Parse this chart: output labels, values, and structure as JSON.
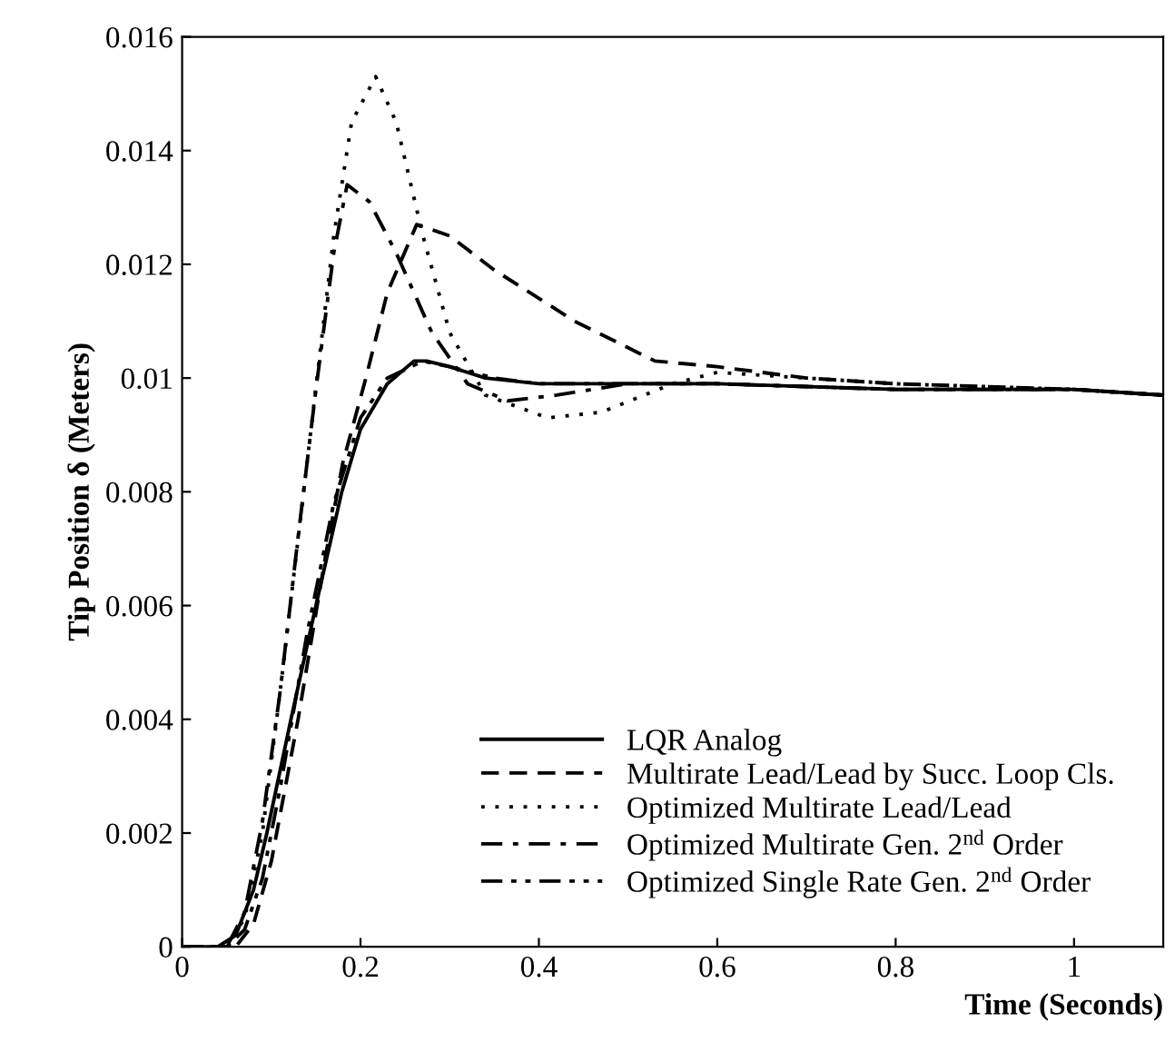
{
  "chart_data": {
    "type": "line",
    "xlabel": "Time (Seconds)",
    "ylabel": "Tip Position δ (Meters)",
    "xlim": [
      0,
      1.1
    ],
    "xticks": [
      0,
      0.2,
      0.4,
      0.6,
      0.8,
      1
    ],
    "ylim": [
      0,
      0.016
    ],
    "yticks": [
      0,
      0.002,
      0.004,
      0.006,
      0.008,
      0.01,
      0.012,
      0.014,
      0.016
    ],
    "grid": false,
    "legend": "bottom right",
    "series": [
      {
        "name": "LQR Analog",
        "color": "#000000",
        "line_style": "solid",
        "x": [
          0,
          0.04,
          0.06,
          0.08,
          0.095,
          0.122,
          0.15,
          0.179,
          0.2,
          0.23,
          0.26,
          0.274,
          0.3,
          0.34,
          0.4,
          0.5,
          0.6,
          0.8,
          1.0,
          1.1
        ],
        "values": [
          0,
          0,
          0.0002,
          0.001,
          0.002,
          0.004,
          0.006,
          0.008,
          0.0091,
          0.0099,
          0.0103,
          0.0103,
          0.0102,
          0.01,
          0.0099,
          0.0099,
          0.0099,
          0.0098,
          0.0098,
          0.0097
        ]
      },
      {
        "name": "Multirate Lead/Lead by Succ. Loop Cls.",
        "color": "#000000",
        "line_style": "dashed",
        "x": [
          0,
          0.06,
          0.08,
          0.1,
          0.13,
          0.16,
          0.18,
          0.206,
          0.23,
          0.263,
          0.3,
          0.35,
          0.44,
          0.53,
          0.6,
          0.7,
          0.8,
          1.0,
          1.1
        ],
        "values": [
          0,
          0,
          0.0004,
          0.0015,
          0.004,
          0.0068,
          0.0085,
          0.01,
          0.0115,
          0.0127,
          0.0125,
          0.0119,
          0.011,
          0.0103,
          0.0102,
          0.01,
          0.0099,
          0.0098,
          0.0097
        ]
      },
      {
        "name": "Optimized Multirate Lead/Lead",
        "color": "#000000",
        "line_style": "dotted",
        "x": [
          0,
          0.05,
          0.07,
          0.09,
          0.11,
          0.14,
          0.17,
          0.19,
          0.217,
          0.24,
          0.27,
          0.3,
          0.34,
          0.41,
          0.47,
          0.55,
          0.6,
          0.7,
          0.8,
          1.0,
          1.1
        ],
        "values": [
          0,
          0,
          0.0005,
          0.002,
          0.0045,
          0.0085,
          0.0125,
          0.0145,
          0.0153,
          0.0145,
          0.0125,
          0.0108,
          0.0097,
          0.0093,
          0.0094,
          0.0099,
          0.0101,
          0.01,
          0.0099,
          0.0098,
          0.0097
        ]
      },
      {
        "name": "Optimized Multirate Gen. 2$^{nd}$ Order",
        "color": "#000000",
        "line_style": "dashdot",
        "x": [
          0,
          0.05,
          0.07,
          0.09,
          0.11,
          0.13,
          0.15,
          0.17,
          0.185,
          0.21,
          0.24,
          0.28,
          0.32,
          0.365,
          0.42,
          0.5,
          0.6,
          0.8,
          1.0,
          1.1
        ],
        "values": [
          0,
          0,
          0.0006,
          0.0022,
          0.0045,
          0.0072,
          0.0098,
          0.0122,
          0.0134,
          0.0131,
          0.0122,
          0.0108,
          0.0099,
          0.0096,
          0.0097,
          0.0099,
          0.0099,
          0.0098,
          0.0098,
          0.0097
        ]
      },
      {
        "name": "Optimized Single Rate Gen. 2$^{nd}$ Order",
        "color": "#000000",
        "line_style": "dashdotdot",
        "x": [
          0,
          0.05,
          0.07,
          0.09,
          0.11,
          0.14,
          0.17,
          0.2,
          0.23,
          0.27,
          0.3,
          0.35,
          0.4,
          0.5,
          0.6,
          0.8,
          1.0,
          1.1
        ],
        "values": [
          0,
          0,
          0.0003,
          0.0012,
          0.0028,
          0.0055,
          0.0078,
          0.0093,
          0.01,
          0.0103,
          0.0102,
          0.01,
          0.0099,
          0.0099,
          0.0099,
          0.0098,
          0.0098,
          0.0097
        ]
      }
    ]
  }
}
